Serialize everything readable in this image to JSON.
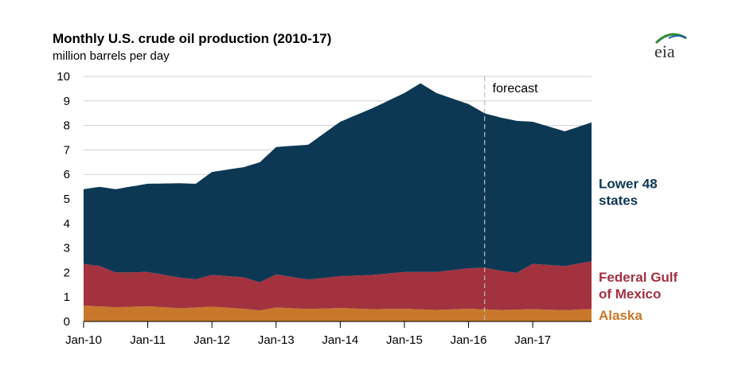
{
  "header": {
    "title": "Monthly U.S. crude oil production (2010-17)",
    "subtitle": "million barrels per day",
    "logo_text": "eia"
  },
  "chart_data": {
    "type": "area",
    "stacked": true,
    "title": "Monthly U.S. crude oil production (2010-17)",
    "ylabel": "million barrels per day",
    "xlabel": "",
    "ylim": [
      0,
      10
    ],
    "yticks": [
      0,
      1,
      2,
      3,
      4,
      5,
      6,
      7,
      8,
      9,
      10
    ],
    "xlim": [
      "2010-01",
      "2017-12"
    ],
    "xticks": [
      {
        "x": "2010-01",
        "label": "Jan-10"
      },
      {
        "x": "2011-01",
        "label": "Jan-11"
      },
      {
        "x": "2012-01",
        "label": "Jan-12"
      },
      {
        "x": "2013-01",
        "label": "Jan-13"
      },
      {
        "x": "2014-01",
        "label": "Jan-14"
      },
      {
        "x": "2015-01",
        "label": "Jan-15"
      },
      {
        "x": "2016-01",
        "label": "Jan-16"
      },
      {
        "x": "2017-01",
        "label": "Jan-17"
      }
    ],
    "grid": "horizontal",
    "annotation": {
      "label": "forecast",
      "x": "2016-04"
    },
    "series": [
      {
        "name": "Alaska",
        "label": "Alaska",
        "color": "#c8782a",
        "points": [
          [
            "2010-01",
            0.65
          ],
          [
            "2010-07",
            0.58
          ],
          [
            "2011-01",
            0.62
          ],
          [
            "2011-07",
            0.54
          ],
          [
            "2012-01",
            0.6
          ],
          [
            "2012-07",
            0.52
          ],
          [
            "2012-10",
            0.45
          ],
          [
            "2013-01",
            0.57
          ],
          [
            "2013-07",
            0.51
          ],
          [
            "2014-01",
            0.55
          ],
          [
            "2014-07",
            0.5
          ],
          [
            "2015-01",
            0.52
          ],
          [
            "2015-07",
            0.47
          ],
          [
            "2016-01",
            0.52
          ],
          [
            "2016-07",
            0.47
          ],
          [
            "2017-01",
            0.5
          ],
          [
            "2017-07",
            0.46
          ],
          [
            "2017-12",
            0.51
          ]
        ]
      },
      {
        "name": "Federal Gulf of Mexico",
        "label": "Federal Gulf\nof Mexico",
        "color": "#a3323f",
        "points": [
          [
            "2010-01",
            1.7
          ],
          [
            "2010-04",
            1.65
          ],
          [
            "2010-07",
            1.42
          ],
          [
            "2011-01",
            1.4
          ],
          [
            "2011-07",
            1.25
          ],
          [
            "2011-10",
            1.15
          ],
          [
            "2012-01",
            1.3
          ],
          [
            "2012-07",
            1.28
          ],
          [
            "2012-10",
            1.15
          ],
          [
            "2013-01",
            1.35
          ],
          [
            "2013-07",
            1.2
          ],
          [
            "2014-01",
            1.3
          ],
          [
            "2014-07",
            1.4
          ],
          [
            "2015-01",
            1.5
          ],
          [
            "2015-07",
            1.55
          ],
          [
            "2016-01",
            1.65
          ],
          [
            "2016-04",
            1.7
          ],
          [
            "2016-10",
            1.5
          ],
          [
            "2017-01",
            1.85
          ],
          [
            "2017-07",
            1.8
          ],
          [
            "2017-12",
            1.95
          ]
        ]
      },
      {
        "name": "Lower 48 states",
        "label": "Lower 48\nstates",
        "color": "#0d3854",
        "points": [
          [
            "2010-01",
            3.05
          ],
          [
            "2010-07",
            3.4
          ],
          [
            "2011-01",
            3.6
          ],
          [
            "2011-07",
            3.85
          ],
          [
            "2011-10",
            3.9
          ],
          [
            "2012-01",
            4.2
          ],
          [
            "2012-07",
            4.5
          ],
          [
            "2012-10",
            4.9
          ],
          [
            "2013-01",
            5.2
          ],
          [
            "2013-07",
            5.5
          ],
          [
            "2014-01",
            6.3
          ],
          [
            "2014-07",
            6.8
          ],
          [
            "2015-01",
            7.3
          ],
          [
            "2015-04",
            7.7
          ],
          [
            "2015-07",
            7.3
          ],
          [
            "2016-01",
            6.7
          ],
          [
            "2016-04",
            6.3
          ],
          [
            "2016-10",
            6.2
          ],
          [
            "2017-01",
            5.8
          ],
          [
            "2017-07",
            5.5
          ],
          [
            "2017-12",
            5.66
          ]
        ]
      }
    ]
  }
}
